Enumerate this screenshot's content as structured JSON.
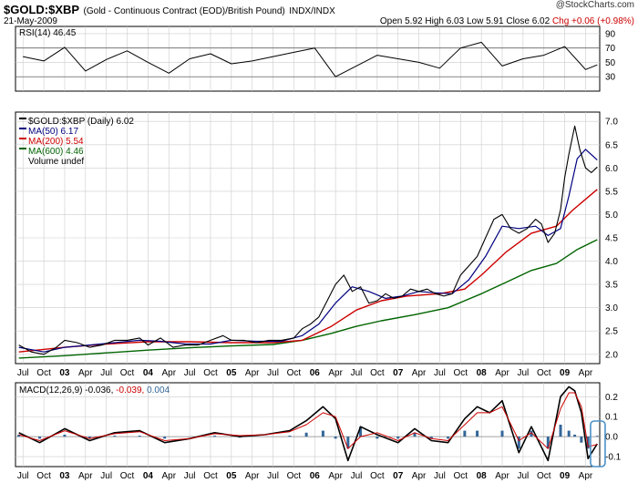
{
  "header": {
    "symbol": "$GOLD:$XBP",
    "description": "(Gold - Continuous Contract (EOD)/British Pound)",
    "exchange": "INDX/INDX",
    "brand": "@StockCharts.com",
    "date": "21-May-2009",
    "ohlc": {
      "open": "Open 5.92",
      "high": "High 6.03",
      "low": "Low 5.91",
      "close": "Close 6.02",
      "change": "Chg +0.06 (+0.98%)"
    }
  },
  "colors": {
    "price": "#000000",
    "price_up": "#cc0000",
    "ma50": "#000080",
    "ma200": "#cc0000",
    "ma600": "#006400",
    "macd_line": "#000000",
    "signal_line": "#cc0000",
    "histogram": "#336699",
    "grid": "#cccccc",
    "highlight": "#4a90c8"
  },
  "x_axis": {
    "labels": [
      "Jul",
      "Oct",
      "03",
      "Apr",
      "Jul",
      "Oct",
      "04",
      "Apr",
      "Jul",
      "Oct",
      "05",
      "Apr",
      "Jul",
      "Oct",
      "06",
      "Apr",
      "Jul",
      "Oct",
      "07",
      "Apr",
      "Jul",
      "Oct",
      "08",
      "Apr",
      "Jul",
      "Oct",
      "09",
      "Apr"
    ],
    "bold_labels": [
      "03",
      "04",
      "05",
      "06",
      "07",
      "08",
      "09"
    ]
  },
  "chart_data": [
    {
      "type": "line",
      "panel": "rsi",
      "legend": "RSI(14) 46.45",
      "ylim": [
        10,
        100
      ],
      "yticks": [
        30,
        50,
        70,
        90
      ],
      "reference_lines": [
        30,
        70
      ],
      "series": [
        {
          "name": "RSI(14)",
          "last": 46.45,
          "x": [
            2002.5,
            2002.75,
            2003.0,
            2003.25,
            2003.5,
            2003.75,
            2004.0,
            2004.25,
            2004.5,
            2004.75,
            2005.0,
            2005.25,
            2005.5,
            2005.75,
            2006.0,
            2006.25,
            2006.5,
            2006.75,
            2007.0,
            2007.25,
            2007.5,
            2007.75,
            2008.0,
            2008.25,
            2008.5,
            2008.75,
            2009.0,
            2009.25,
            2009.39
          ],
          "values": [
            58,
            52,
            71,
            38,
            54,
            66,
            50,
            35,
            55,
            62,
            48,
            52,
            58,
            64,
            70,
            30,
            45,
            60,
            55,
            50,
            42,
            70,
            78,
            45,
            55,
            60,
            72,
            40,
            46.45
          ]
        }
      ]
    },
    {
      "type": "line",
      "panel": "price",
      "legend": "$GOLD:$XBP (Daily) 6.02",
      "ylim": [
        1.8,
        7.2
      ],
      "yticks": [
        2.0,
        2.5,
        3.0,
        3.5,
        4.0,
        4.5,
        5.0,
        5.5,
        6.0,
        6.5,
        7.0
      ],
      "ytick_labels": [
        "2.0",
        "2.5",
        "3.0",
        "3.5",
        "4.0",
        "4.5",
        "5.0",
        "5.5",
        "6.0",
        "6.5",
        "7.0"
      ],
      "series": [
        {
          "name": "$GOLD:$XBP (Daily) 6.02",
          "x": [
            2002.45,
            2002.6,
            2002.75,
            2002.9,
            2003.0,
            2003.15,
            2003.3,
            2003.45,
            2003.6,
            2003.75,
            2003.9,
            2004.0,
            2004.15,
            2004.3,
            2004.45,
            2004.6,
            2004.75,
            2004.9,
            2005.0,
            2005.15,
            2005.3,
            2005.45,
            2005.6,
            2005.75,
            2005.85,
            2005.95,
            2006.05,
            2006.15,
            2006.25,
            2006.35,
            2006.45,
            2006.55,
            2006.65,
            2006.75,
            2006.85,
            2006.95,
            2007.05,
            2007.15,
            2007.25,
            2007.35,
            2007.45,
            2007.55,
            2007.65,
            2007.75,
            2007.85,
            2007.95,
            2008.05,
            2008.15,
            2008.25,
            2008.35,
            2008.45,
            2008.55,
            2008.65,
            2008.72,
            2008.8,
            2008.88,
            2008.95,
            2009.0,
            2009.05,
            2009.12,
            2009.18,
            2009.25,
            2009.32,
            2009.39
          ],
          "values": [
            2.2,
            2.05,
            2.0,
            2.15,
            2.3,
            2.25,
            2.15,
            2.2,
            2.3,
            2.3,
            2.35,
            2.2,
            2.35,
            2.15,
            2.2,
            2.2,
            2.3,
            2.4,
            2.3,
            2.3,
            2.25,
            2.3,
            2.3,
            2.35,
            2.55,
            2.65,
            2.8,
            3.15,
            3.5,
            3.7,
            3.35,
            3.45,
            3.1,
            3.15,
            3.3,
            3.2,
            3.25,
            3.4,
            3.35,
            3.4,
            3.3,
            3.25,
            3.3,
            3.7,
            3.9,
            4.1,
            4.5,
            4.9,
            5.0,
            4.7,
            4.6,
            4.7,
            4.9,
            4.8,
            4.4,
            4.6,
            5.1,
            5.8,
            6.3,
            6.9,
            6.4,
            6.0,
            5.9,
            6.02
          ]
        },
        {
          "name": "MA(50) 6.17",
          "last": 6.17,
          "x": [
            2002.45,
            2002.75,
            2003.0,
            2003.3,
            2003.6,
            2003.9,
            2004.15,
            2004.45,
            2004.75,
            2005.0,
            2005.3,
            2005.6,
            2005.85,
            2006.05,
            2006.25,
            2006.45,
            2006.65,
            2006.85,
            2007.05,
            2007.25,
            2007.45,
            2007.65,
            2007.85,
            2008.05,
            2008.25,
            2008.45,
            2008.65,
            2008.8,
            2008.95,
            2009.05,
            2009.15,
            2009.25,
            2009.39
          ],
          "values": [
            2.15,
            2.05,
            2.15,
            2.2,
            2.25,
            2.3,
            2.28,
            2.22,
            2.22,
            2.3,
            2.28,
            2.28,
            2.4,
            2.65,
            3.1,
            3.45,
            3.35,
            3.2,
            3.25,
            3.35,
            3.32,
            3.3,
            3.6,
            4.1,
            4.75,
            4.7,
            4.75,
            4.55,
            4.7,
            5.4,
            6.2,
            6.4,
            6.17
          ]
        },
        {
          "name": "MA(200) 5.54",
          "last": 5.54,
          "x": [
            2002.45,
            2003.0,
            2003.5,
            2004.0,
            2004.5,
            2005.0,
            2005.5,
            2005.85,
            2006.2,
            2006.5,
            2006.8,
            2007.1,
            2007.5,
            2007.8,
            2008.0,
            2008.3,
            2008.6,
            2008.9,
            2009.1,
            2009.39
          ],
          "values": [
            2.05,
            2.15,
            2.22,
            2.27,
            2.27,
            2.25,
            2.25,
            2.3,
            2.6,
            2.95,
            3.15,
            3.25,
            3.3,
            3.4,
            3.7,
            4.2,
            4.6,
            4.75,
            5.1,
            5.54
          ]
        },
        {
          "name": "MA(600) 4.46",
          "last": 4.46,
          "x": [
            2002.45,
            2003.0,
            2003.5,
            2004.0,
            2004.5,
            2005.0,
            2005.5,
            2005.85,
            2006.2,
            2006.5,
            2006.8,
            2007.2,
            2007.6,
            2008.0,
            2008.3,
            2008.6,
            2008.9,
            2009.15,
            2009.39
          ],
          "values": [
            1.92,
            1.97,
            2.03,
            2.09,
            2.14,
            2.18,
            2.21,
            2.3,
            2.45,
            2.6,
            2.72,
            2.85,
            3.0,
            3.3,
            3.55,
            3.8,
            3.95,
            4.25,
            4.46
          ]
        }
      ],
      "extra_legend": "Volume undef"
    },
    {
      "type": "line",
      "panel": "macd",
      "legend": "MACD(12,26,9)",
      "legend_values": [
        "-0.036",
        "-0.039",
        "0.004"
      ],
      "ylim": [
        -0.15,
        0.27
      ],
      "yticks": [
        -0.1,
        0.0,
        0.1,
        0.2
      ],
      "ytick_labels": [
        "-0.1",
        "0.0",
        "0.1",
        "0.2"
      ],
      "series": [
        {
          "name": "MACD",
          "last": -0.036,
          "x": [
            2002.45,
            2002.7,
            2003.0,
            2003.3,
            2003.6,
            2003.9,
            2004.2,
            2004.5,
            2004.8,
            2005.1,
            2005.4,
            2005.7,
            2005.9,
            2006.1,
            2006.25,
            2006.4,
            2006.55,
            2006.75,
            2007.0,
            2007.2,
            2007.4,
            2007.6,
            2007.8,
            2007.95,
            2008.1,
            2008.25,
            2008.45,
            2008.6,
            2008.8,
            2008.95,
            2009.05,
            2009.12,
            2009.2,
            2009.28,
            2009.39
          ],
          "values": [
            0.02,
            -0.03,
            0.04,
            -0.02,
            0.02,
            0.03,
            -0.03,
            -0.01,
            0.02,
            0.0,
            0.01,
            0.03,
            0.08,
            0.15,
            0.09,
            -0.12,
            0.05,
            0.01,
            -0.03,
            0.04,
            -0.02,
            -0.03,
            0.09,
            0.15,
            0.12,
            0.18,
            -0.08,
            0.05,
            -0.12,
            0.2,
            0.25,
            0.23,
            0.12,
            -0.11,
            -0.036
          ]
        },
        {
          "name": "Signal",
          "last": -0.039,
          "x": [
            2002.45,
            2002.7,
            2003.0,
            2003.3,
            2003.6,
            2003.9,
            2004.2,
            2004.5,
            2004.8,
            2005.1,
            2005.4,
            2005.7,
            2005.9,
            2006.1,
            2006.25,
            2006.4,
            2006.55,
            2006.75,
            2007.0,
            2007.2,
            2007.4,
            2007.6,
            2007.8,
            2007.95,
            2008.1,
            2008.25,
            2008.45,
            2008.6,
            2008.8,
            2008.95,
            2009.05,
            2009.12,
            2009.2,
            2009.28,
            2009.39
          ],
          "values": [
            0.01,
            -0.02,
            0.03,
            -0.01,
            0.015,
            0.025,
            -0.02,
            -0.01,
            0.015,
            0.005,
            0.01,
            0.025,
            0.06,
            0.12,
            0.1,
            -0.06,
            0.0,
            0.02,
            -0.02,
            0.02,
            -0.01,
            -0.02,
            0.06,
            0.12,
            0.12,
            0.15,
            -0.02,
            0.02,
            -0.06,
            0.14,
            0.22,
            0.22,
            0.15,
            -0.05,
            -0.039
          ]
        },
        {
          "name": "Histogram",
          "last": 0.004,
          "x": [
            2002.45,
            2002.7,
            2003.0,
            2003.3,
            2003.6,
            2003.9,
            2004.2,
            2004.5,
            2004.8,
            2005.1,
            2005.4,
            2005.7,
            2005.9,
            2006.1,
            2006.25,
            2006.4,
            2006.55,
            2006.75,
            2007.0,
            2007.2,
            2007.4,
            2007.6,
            2007.8,
            2007.95,
            2008.1,
            2008.25,
            2008.45,
            2008.6,
            2008.8,
            2008.95,
            2009.05,
            2009.12,
            2009.2,
            2009.28,
            2009.39
          ],
          "values": [
            0.01,
            -0.01,
            0.01,
            -0.01,
            0.005,
            0.005,
            -0.01,
            0.0,
            0.005,
            -0.005,
            0.0,
            0.005,
            0.02,
            0.03,
            -0.01,
            -0.06,
            0.05,
            -0.01,
            -0.01,
            0.02,
            -0.01,
            -0.01,
            0.03,
            0.03,
            0.0,
            0.03,
            -0.06,
            0.03,
            -0.06,
            0.06,
            0.03,
            0.01,
            -0.03,
            -0.06,
            0.004
          ]
        }
      ]
    }
  ]
}
